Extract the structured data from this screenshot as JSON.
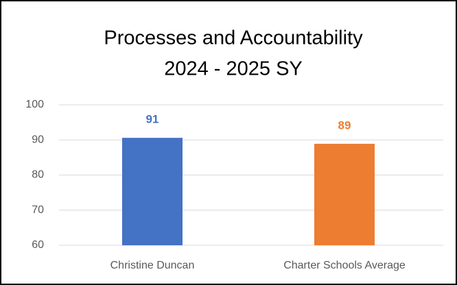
{
  "chart_data": {
    "type": "bar",
    "title": [
      "Processes and Accountability",
      "2024 - 2025 SY"
    ],
    "categories": [
      "Christine Duncan",
      "Charter Schools Average"
    ],
    "values": [
      90.6,
      88.9
    ],
    "value_labels": [
      "91",
      "89"
    ],
    "colors": [
      "#4472c4",
      "#ed7d31"
    ],
    "ylim": [
      60,
      100
    ],
    "yticks": [
      60,
      70,
      80,
      90,
      100
    ],
    "grid": true
  }
}
